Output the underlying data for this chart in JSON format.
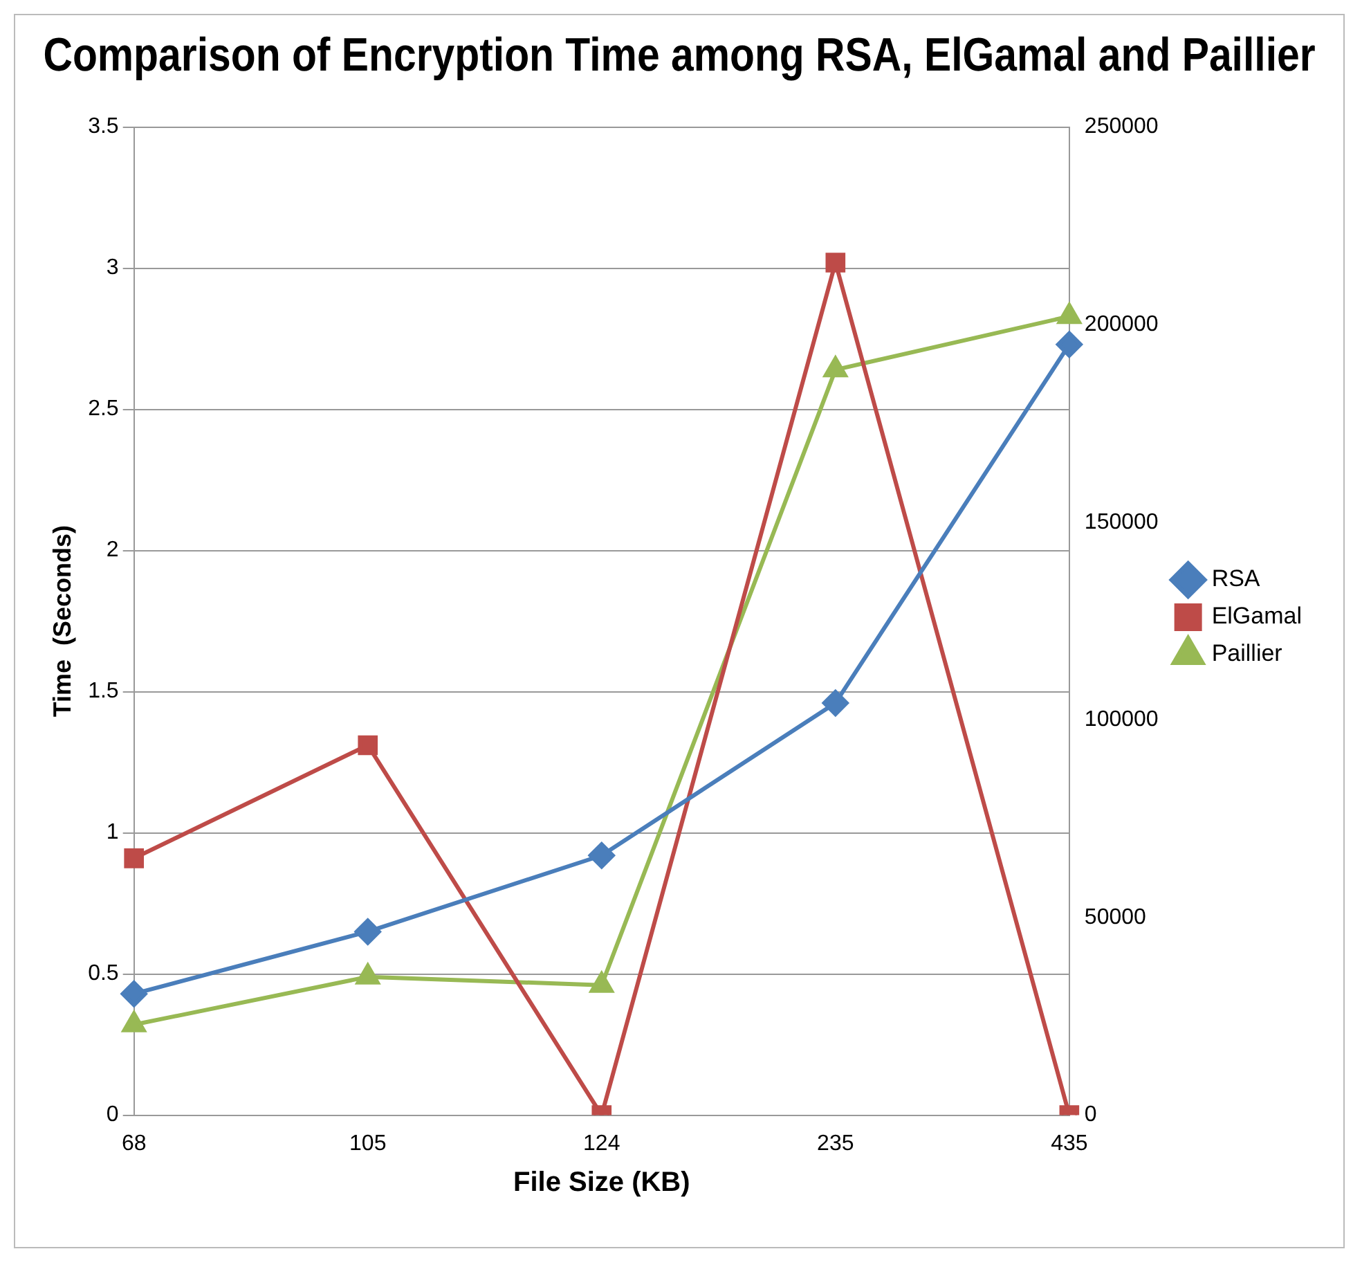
{
  "chart_data": {
    "type": "line",
    "title": "Comparison of Encryption Time among RSA, ElGamal and Paillier",
    "xlabel": "File Size (KB)",
    "ylabel": "Time  (Seconds)",
    "categories": [
      "68",
      "105",
      "124",
      "235",
      "435"
    ],
    "series": [
      {
        "name": "RSA",
        "color": "#4a7ebb",
        "marker": "diamond",
        "values": [
          0.43,
          0.65,
          0.92,
          1.46,
          2.73
        ]
      },
      {
        "name": "ElGamal",
        "color": "#be4b48",
        "marker": "square",
        "axis": "y2",
        "values": [
          65000,
          93600,
          0,
          215700,
          0
        ]
      },
      {
        "name": "Paillier",
        "color": "#98b954",
        "marker": "triangle",
        "axis": "y2",
        "values": [
          22900,
          35000,
          32900,
          188600,
          202100
        ]
      }
    ],
    "ylim": [
      0,
      3.5
    ],
    "yticks": [
      0,
      0.5,
      1,
      1.5,
      2,
      2.5,
      3,
      3.5
    ],
    "y2lim": [
      0,
      250000
    ],
    "y2ticks": [
      0,
      50000,
      100000,
      150000,
      200000,
      250000
    ],
    "grid": "y",
    "legend": "right"
  }
}
